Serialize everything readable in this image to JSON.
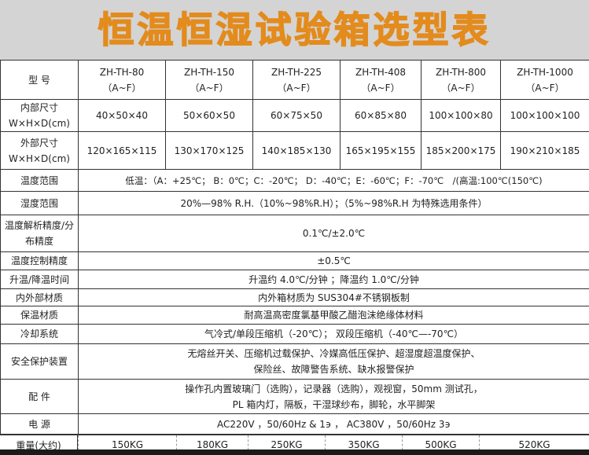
{
  "title": "恒温恒湿试验箱选型表",
  "header": {
    "label": "型 号",
    "models": [
      [
        "ZH-TH-80",
        "（A~F）"
      ],
      [
        "ZH-TH-150",
        "（A~F）"
      ],
      [
        "ZH-TH-225",
        "（A~F）"
      ],
      [
        "ZH-TH-408",
        "（A~F）"
      ],
      [
        "ZH-TH-800",
        "（A~F）"
      ],
      [
        "ZH-TH-1000",
        "（A~F）"
      ]
    ]
  },
  "inner": {
    "label1": "内部尺寸",
    "label2": "W×H×D(cm)",
    "values": [
      "40×50×40",
      "50×60×50",
      "60×75×50",
      "60×85×80",
      "100×100×80",
      "100×100×100"
    ]
  },
  "outer": {
    "label1": "外部尺寸",
    "label2": "W×H×D(cm)",
    "values": [
      "120×165×115",
      "130×170×125",
      "140×185×130",
      "165×195×155",
      "185×200×175",
      "190×210×185"
    ]
  },
  "rows": [
    {
      "label": "温度范围",
      "value": "低温：（A：+25℃； B：0℃；C：-20℃； D：-40℃；E：-60℃；F：-70℃　/(高温:100℃(150℃)"
    },
    {
      "label": "湿度范围",
      "value": "20%—98% R.H.（10%~98%R.H）；（5%~98%R.H 为特殊选用条件）"
    },
    {
      "label": "温度解析精度/分布精度",
      "value": "0.1℃/±2.0℃"
    },
    {
      "label": "温度控制精度",
      "value": "±0.5℃"
    },
    {
      "label": "升温/降温时间",
      "value": "升温约 4.0℃/分钟 ；降温约 1.0℃/分钟"
    },
    {
      "label": "内外部材质",
      "value": "内外箱材质为 SUS304#不锈钢板制"
    },
    {
      "label": "保温材质",
      "value": "耐高温高密度氯基甲酸乙醋泡沫绝缘体材料"
    },
    {
      "label": "冷却系统",
      "value": "气冷式/单段压缩机（-20℃）； 双段压缩机（-40℃—-70℃）"
    },
    {
      "label": "安全保护装置",
      "value": "无熔丝开关、压缩机过载保护、冷媒高低压保护、超湿度超温度保护、",
      "value2": "保险丝、故障警告系统、缺水报警保护"
    },
    {
      "label": "配 件",
      "value": "操作孔内置玻璃门（选购），记录器（选购），观视窗，50mm 测试孔，",
      "value2": "PL 箱内灯，隔板，干湿球纱布，脚轮，水平脚架"
    },
    {
      "label": "电 源",
      "value": "AC220V ，50/60Hz & 1϶ ， AC380V ，50/60Hz 3϶"
    }
  ],
  "weight": {
    "label": "重量(大约)",
    "values": [
      "150KG",
      "180KG",
      "250KG",
      "350KG",
      "500KG",
      "520KG"
    ]
  }
}
